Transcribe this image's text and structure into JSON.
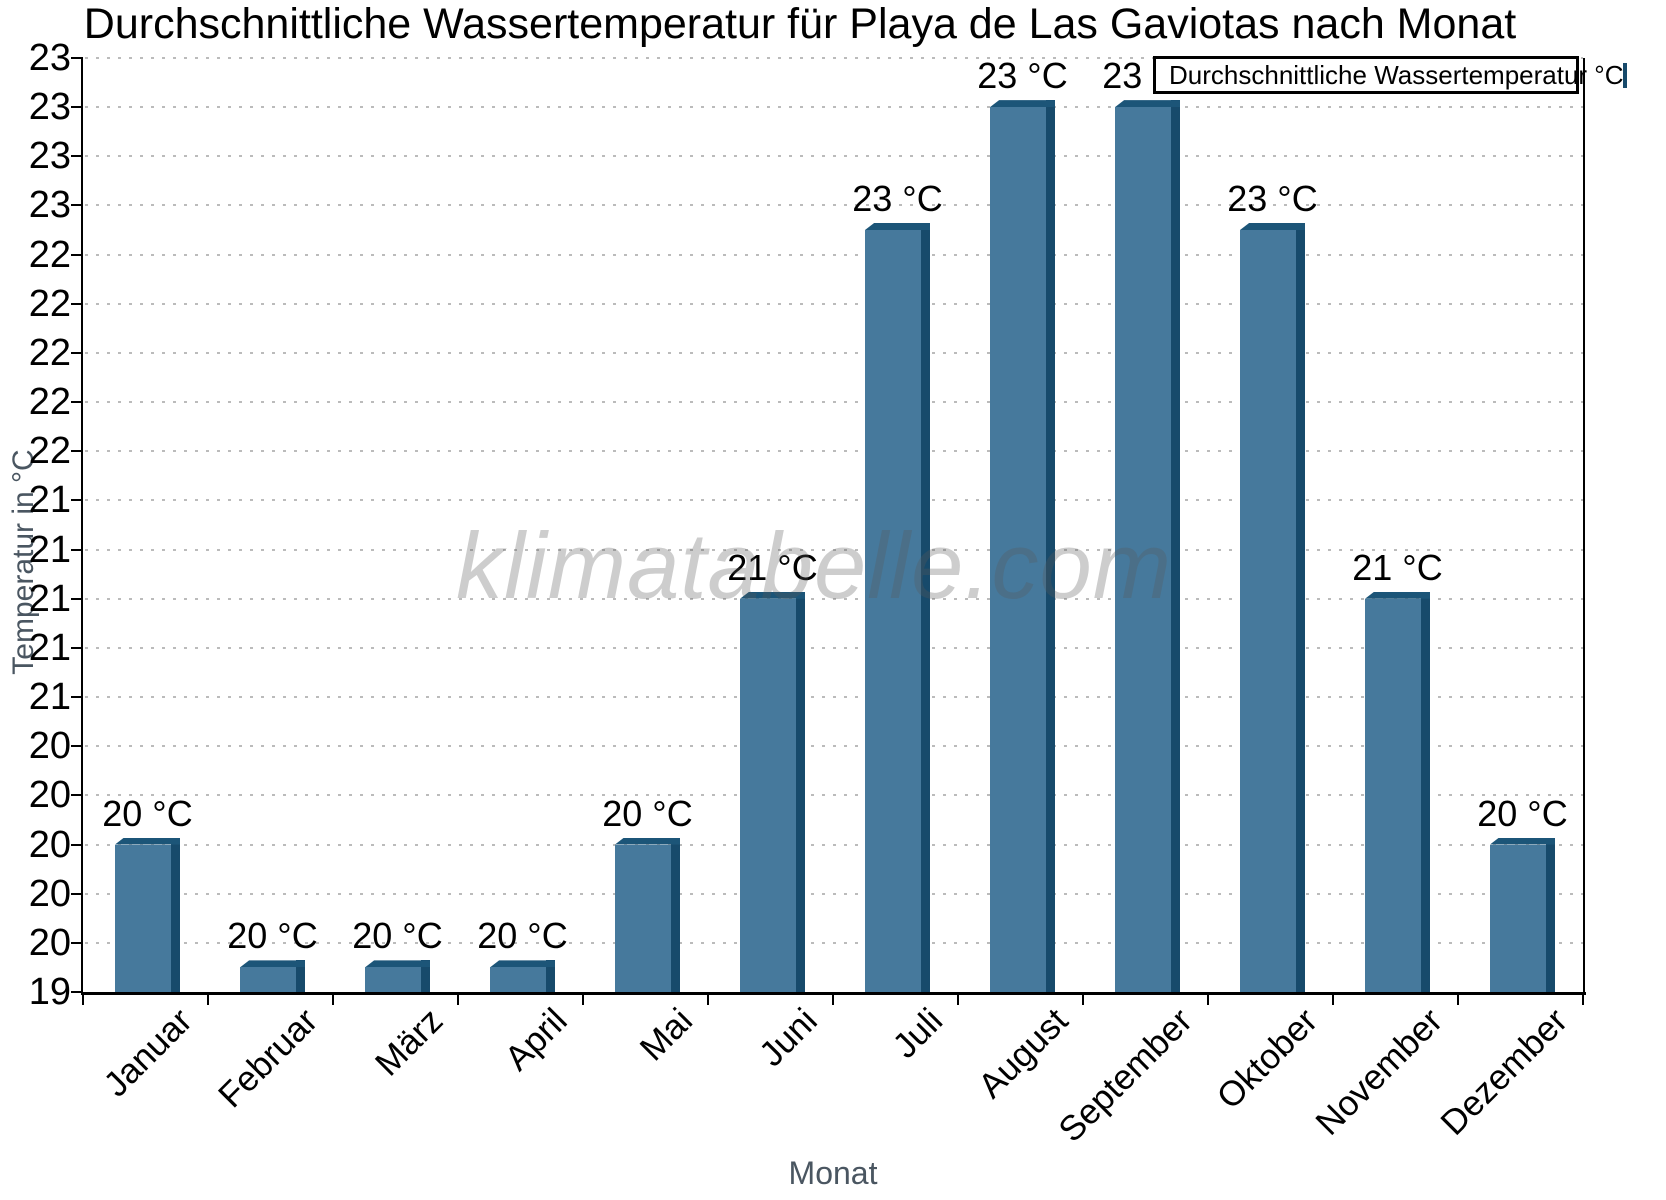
{
  "title": "Durchschnittliche Wassertemperatur für Playa de Las Gaviotas nach Monat",
  "watermark": "klimatabelle.com",
  "legend": {
    "label": "Durchschnittliche Wassertemperatur °C",
    "position": "top-right",
    "swatch_icon": "legend-swatch"
  },
  "axes": {
    "y_title": "Temperatur in °C",
    "x_title": "Monat"
  },
  "chart_data": {
    "type": "bar",
    "title": "Durchschnittliche Wassertemperatur für Playa de Las Gaviotas nach Monat",
    "xlabel": "Monat",
    "ylabel": "Temperatur in °C",
    "categories": [
      "Januar",
      "Februar",
      "März",
      "April",
      "Mai",
      "Juni",
      "Juli",
      "August",
      "September",
      "Oktober",
      "November",
      "Dezember"
    ],
    "values": [
      20.0,
      19.5,
      19.5,
      19.5,
      20.0,
      21.0,
      22.5,
      23.0,
      23.0,
      22.5,
      21.0,
      20.0
    ],
    "bar_labels": [
      "20 °C",
      "20 °C",
      "20 °C",
      "20 °C",
      "20 °C",
      "21 °C",
      "23 °C",
      "23 °C",
      "23 °C",
      "23 °C",
      "21 °C",
      "20 °C"
    ],
    "series_name": "Durchschnittliche Wassertemperatur °C",
    "ylim": [
      19.4,
      23.2
    ],
    "ytick_step": 0.2,
    "ytick_labels_top_to_bottom": [
      "23",
      "23",
      "23",
      "23",
      "22",
      "22",
      "22",
      "22",
      "22",
      "21",
      "21",
      "21",
      "21",
      "21",
      "20",
      "20",
      "20",
      "20",
      "20",
      "19"
    ],
    "grid": "horizontal dotted",
    "legend_position": "top-right"
  },
  "colors": {
    "bar_face": "#46799C",
    "bar_top": "#1C5578",
    "bar_side": "#174A6B",
    "grid": "#BBBBBB",
    "axis": "#000000",
    "axis_title": "#4A5661",
    "watermark_gray": "#C9C9C9",
    "legend_bg": "#FFFFFF",
    "legend_border": "#000000"
  }
}
